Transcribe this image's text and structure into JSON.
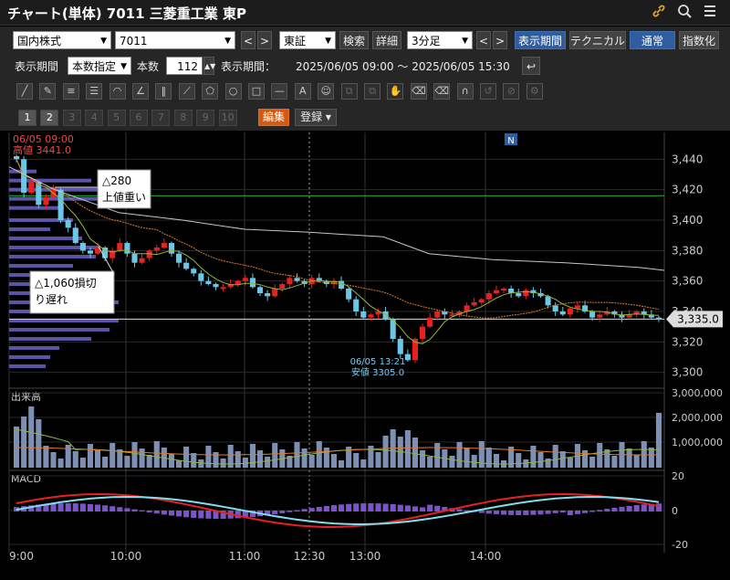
{
  "window": {
    "title": "チャート(単体) 7011 三菱重工業 東P",
    "icons": [
      "link-icon",
      "search-icon",
      "menu-icon"
    ]
  },
  "toolbar1": {
    "market": "国内株式",
    "code": "7011",
    "exchange": "東証",
    "search_label": "検索",
    "detail_label": "詳細",
    "interval": "3分足",
    "period_label": "表示期間",
    "technical_label": "テクニカル",
    "normal_label": "通常",
    "index_label": "指数化"
  },
  "toolbar2": {
    "period_label": "表示期間",
    "period_mode": "本数指定",
    "count_label": "本数",
    "count_value": "112",
    "range_label": "表示期間：",
    "range_value": "2025/06/05 09:00 ～ 2025/06/05 15:30"
  },
  "tabs": {
    "numbers": [
      "1",
      "2",
      "3",
      "4",
      "5",
      "6",
      "7",
      "8",
      "9",
      "10"
    ],
    "edit_label": "編集",
    "register_label": "登録"
  },
  "chart": {
    "info_date": "06/05 09:00",
    "info_high": "高値 3441.0",
    "news_badge": "N",
    "callout_upper_1": "△280",
    "callout_upper_2": "上値重い",
    "callout_lower_1": "△1,060損切",
    "callout_lower_2": "り遅れ",
    "low_label_1": "06/05 13:21",
    "low_label_2": "安値 3305.0",
    "current_price": "3,335.0",
    "volume_title": "出来高",
    "macd_title": "MACD",
    "colors": {
      "up": "#e8201e",
      "down": "#6ec6e6",
      "ma_short": "#8fb93a",
      "ma_mid": "#e07b2a",
      "ma_long": "#c8c8c8",
      "resistance": "#1eaa1e",
      "volprofile": "#6a63c4"
    }
  },
  "chart_data": [
    {
      "type": "candlestick",
      "title": "",
      "y_ticks": [
        "3,440",
        "3,420",
        "3,400",
        "3,380",
        "3,360",
        "3,340",
        "3,320",
        "3,300"
      ],
      "ylim": [
        3295,
        3445
      ],
      "x_ticks": [
        "9:00",
        "10:00",
        "11:00",
        "12:30",
        "13:00",
        "14:00"
      ],
      "resistance_line": 3416,
      "current_price": 3335.0,
      "high": 3441.0,
      "low": 3305.0,
      "series": [
        {
          "name": "price",
          "values": [
            3440,
            3418,
            3425,
            3410,
            3415,
            3420,
            3400,
            3395,
            3385,
            3380,
            3378,
            3382,
            3375,
            3380,
            3385,
            3378,
            3372,
            3375,
            3380,
            3382,
            3385,
            3378,
            3372,
            3368,
            3365,
            3360,
            3358,
            3356,
            3356,
            3358,
            3360,
            3362,
            3356,
            3352,
            3350,
            3355,
            3358,
            3362,
            3360,
            3358,
            3362,
            3360,
            3358,
            3360,
            3355,
            3348,
            3340,
            3336,
            3338,
            3340,
            3335,
            3322,
            3312,
            3308,
            3322,
            3330,
            3336,
            3340,
            3338,
            3338,
            3340,
            3344,
            3346,
            3348,
            3352,
            3354,
            3355,
            3352,
            3350,
            3354,
            3352,
            3350,
            3344,
            3340,
            3338,
            3342,
            3344,
            3340,
            3336,
            3338,
            3340,
            3338,
            3336,
            3338,
            3340,
            3338,
            3336,
            3335
          ]
        }
      ]
    },
    {
      "type": "bar",
      "title": "出来高",
      "y_ticks": [
        "3,000,000",
        "2,000,000",
        "1,000,000"
      ],
      "ylim": [
        0,
        3000000
      ]
    },
    {
      "type": "line",
      "title": "MACD",
      "y_ticks": [
        "20",
        "0",
        "-20"
      ],
      "ylim": [
        -20,
        20
      ]
    }
  ]
}
